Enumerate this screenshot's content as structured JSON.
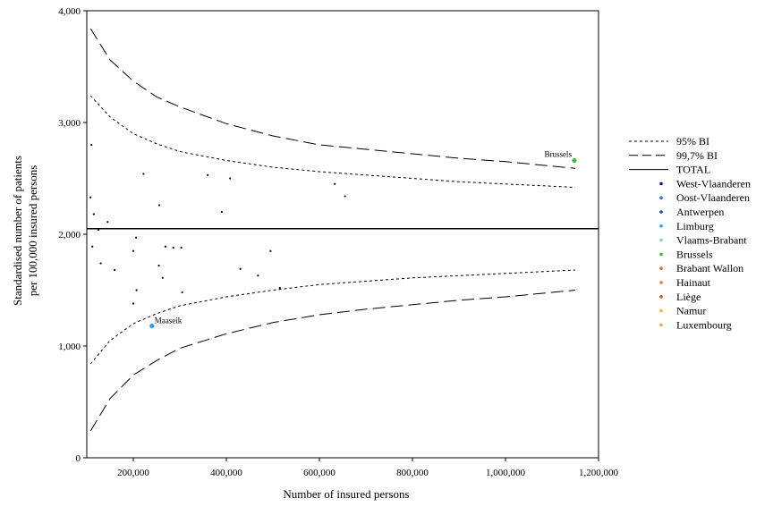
{
  "chart_data": {
    "type": "scatter",
    "title": "",
    "xlabel": "Number of insured persons",
    "ylabel": [
      "Standardised number of patients",
      "per 100,000 insured persons"
    ],
    "xlim": [
      100000,
      1200000
    ],
    "ylim": [
      0,
      4000
    ],
    "x_ticks": [
      200000,
      400000,
      600000,
      800000,
      1000000,
      1200000
    ],
    "x_tick_labels": [
      "200,000",
      "400,000",
      "600,000",
      "800,000",
      "1,000,000",
      "1,200,000"
    ],
    "y_ticks": [
      0,
      1000,
      2000,
      3000,
      4000
    ],
    "y_tick_labels": [
      "0",
      "1,000",
      "2,000",
      "3,000",
      "4,000"
    ],
    "total": 2050,
    "bands": [
      {
        "name": "95% BI",
        "style": "short-dash",
        "upper": [
          [
            108000,
            3240
          ],
          [
            150000,
            3050
          ],
          [
            200000,
            2900
          ],
          [
            250000,
            2810
          ],
          [
            300000,
            2740
          ],
          [
            400000,
            2660
          ],
          [
            500000,
            2600
          ],
          [
            600000,
            2560
          ],
          [
            700000,
            2530
          ],
          [
            800000,
            2500
          ],
          [
            900000,
            2470
          ],
          [
            1000000,
            2450
          ],
          [
            1150000,
            2420
          ]
        ],
        "lower": [
          [
            108000,
            840
          ],
          [
            150000,
            1050
          ],
          [
            200000,
            1200
          ],
          [
            250000,
            1290
          ],
          [
            300000,
            1360
          ],
          [
            400000,
            1440
          ],
          [
            500000,
            1500
          ],
          [
            600000,
            1550
          ],
          [
            700000,
            1580
          ],
          [
            800000,
            1610
          ],
          [
            900000,
            1630
          ],
          [
            1000000,
            1650
          ],
          [
            1150000,
            1680
          ]
        ]
      },
      {
        "name": "99,7% BI",
        "style": "long-dash",
        "upper": [
          [
            108000,
            3840
          ],
          [
            150000,
            3560
          ],
          [
            200000,
            3370
          ],
          [
            250000,
            3230
          ],
          [
            300000,
            3140
          ],
          [
            400000,
            2990
          ],
          [
            500000,
            2880
          ],
          [
            600000,
            2800
          ],
          [
            700000,
            2760
          ],
          [
            800000,
            2720
          ],
          [
            900000,
            2680
          ],
          [
            1000000,
            2650
          ],
          [
            1150000,
            2590
          ]
        ],
        "lower": [
          [
            108000,
            240
          ],
          [
            150000,
            530
          ],
          [
            200000,
            740
          ],
          [
            250000,
            870
          ],
          [
            300000,
            980
          ],
          [
            400000,
            1110
          ],
          [
            500000,
            1210
          ],
          [
            600000,
            1280
          ],
          [
            700000,
            1330
          ],
          [
            800000,
            1370
          ],
          [
            900000,
            1410
          ],
          [
            1000000,
            1440
          ],
          [
            1150000,
            1500
          ]
        ]
      }
    ],
    "points": [
      {
        "x": 108000,
        "y": 2330,
        "group": 0
      },
      {
        "x": 110000,
        "y": 2800,
        "group": 2
      },
      {
        "x": 112000,
        "y": 1890,
        "group": 1
      },
      {
        "x": 115000,
        "y": 2180,
        "group": 0
      },
      {
        "x": 125000,
        "y": 2040,
        "group": 2
      },
      {
        "x": 130000,
        "y": 1740,
        "group": 1
      },
      {
        "x": 145000,
        "y": 2110,
        "group": 0
      },
      {
        "x": 160000,
        "y": 1680,
        "group": 2
      },
      {
        "x": 200000,
        "y": 1850,
        "group": 1
      },
      {
        "x": 200000,
        "y": 1380,
        "group": 0
      },
      {
        "x": 206000,
        "y": 1970,
        "group": 2
      },
      {
        "x": 207000,
        "y": 1500,
        "group": 1
      },
      {
        "x": 222000,
        "y": 2540,
        "group": 0
      },
      {
        "x": 255000,
        "y": 1720,
        "group": 2
      },
      {
        "x": 256000,
        "y": 2260,
        "group": 1
      },
      {
        "x": 263000,
        "y": 1610,
        "group": 0
      },
      {
        "x": 269000,
        "y": 1890,
        "group": 2
      },
      {
        "x": 286000,
        "y": 1880,
        "group": 1
      },
      {
        "x": 303000,
        "y": 1880,
        "group": 0
      },
      {
        "x": 305000,
        "y": 1480,
        "group": 2
      },
      {
        "x": 360000,
        "y": 2530,
        "group": 1
      },
      {
        "x": 390000,
        "y": 2200,
        "group": 0
      },
      {
        "x": 408000,
        "y": 2500,
        "group": 2
      },
      {
        "x": 430000,
        "y": 1690,
        "group": 1
      },
      {
        "x": 468000,
        "y": 1630,
        "group": 0
      },
      {
        "x": 495000,
        "y": 1850,
        "group": 2
      },
      {
        "x": 515000,
        "y": 1520,
        "group": 1
      },
      {
        "x": 633000,
        "y": 2450,
        "group": 0
      },
      {
        "x": 655000,
        "y": 2340,
        "group": 2
      },
      {
        "x": 240000,
        "y": 1180,
        "group": 3,
        "label": "Maaseik"
      },
      {
        "x": 1148000,
        "y": 2660,
        "group": 5,
        "label": "Brussels"
      }
    ],
    "legend": {
      "position": "right",
      "lines": [
        {
          "label": "95% BI",
          "style": "short-dash"
        },
        {
          "label": "99,7% BI",
          "style": "long-dash"
        },
        {
          "label": "TOTAL",
          "style": "solid"
        }
      ],
      "groups": [
        {
          "label": "West-Vlaanderen",
          "color": "#0a1a8a"
        },
        {
          "label": "Oost-Vlaanderen",
          "color": "#3a6fd8"
        },
        {
          "label": "Antwerpen",
          "color": "#1f3fe0"
        },
        {
          "label": "Limburg",
          "color": "#3a9ae8"
        },
        {
          "label": "Vlaams-Brabant",
          "color": "#8ac8f0"
        },
        {
          "label": "Brussels",
          "color": "#3cc03c"
        },
        {
          "label": "Brabant Wallon",
          "color": "#e06a2a"
        },
        {
          "label": "Hainaut",
          "color": "#f07a30"
        },
        {
          "label": "Liège",
          "color": "#c05a30"
        },
        {
          "label": "Namur",
          "color": "#f0c020"
        },
        {
          "label": "Luxembourg",
          "color": "#f0a040"
        }
      ]
    }
  }
}
